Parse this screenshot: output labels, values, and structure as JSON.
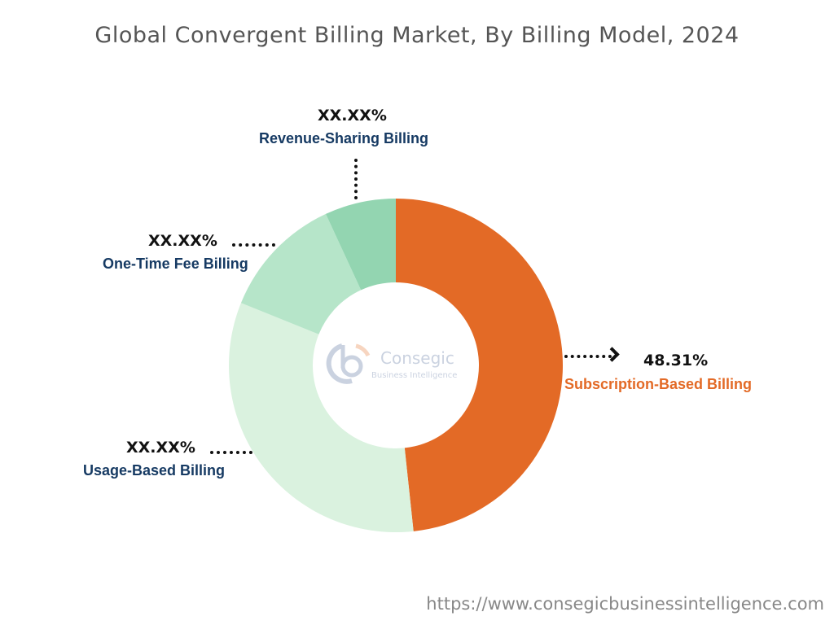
{
  "chart_data": {
    "type": "pie",
    "title": "Global Convergent Billing Market, By Billing Model, 2024",
    "donut": true,
    "slices": [
      {
        "name": "Subscription-Based Billing",
        "value": 48.31,
        "label": "48.31%",
        "color": "#E36A26",
        "label_color": "#E36A26"
      },
      {
        "name": "Usage-Based Billing",
        "value": 32.8,
        "label": "XX.XX%",
        "color": "#DAF2DF",
        "label_color": "#163A63"
      },
      {
        "name": "One-Time Fee Billing",
        "value": 12.0,
        "label": "XX.XX%",
        "color": "#B6E5C9",
        "label_color": "#163A63"
      },
      {
        "name": "Revenue-Sharing Billing",
        "value": 6.89,
        "label": "XX.XX%",
        "color": "#93D5B1",
        "label_color": "#163A63"
      }
    ]
  },
  "logo": {
    "name": "Consegic",
    "tagline": "Business Intelligence"
  },
  "footer_url": "https://www.consegicbusinessintelligence.com"
}
